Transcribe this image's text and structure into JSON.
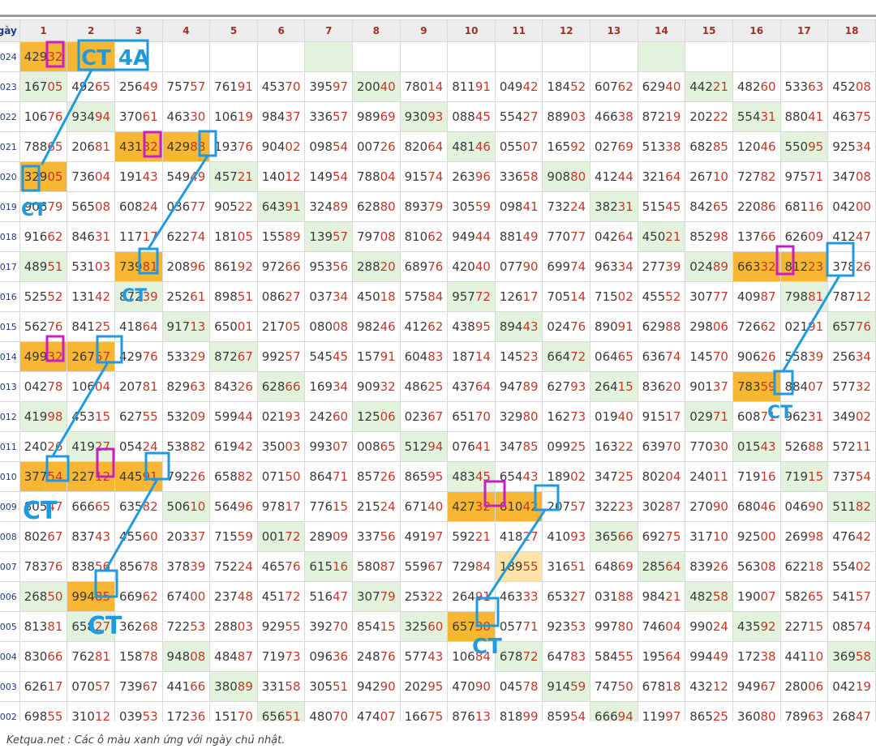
{
  "header": {
    "corner_label": "gày",
    "columns": [
      "1",
      "2",
      "3",
      "4",
      "5",
      "6",
      "7",
      "8",
      "9",
      "10",
      "11",
      "12",
      "13",
      "14",
      "15",
      "16",
      "17",
      "18"
    ]
  },
  "rows": [
    {
      "label": "024",
      "cells": [
        "42932",
        "",
        "",
        "",
        "",
        "",
        "",
        "",
        "",
        "",
        "",
        "",
        "",
        "",
        "",
        "",
        "",
        ""
      ],
      "sun": [
        7,
        14
      ],
      "hl": [
        1,
        2
      ],
      "lh": []
    },
    {
      "label": "023",
      "cells": [
        "16705",
        "49265",
        "25649",
        "75757",
        "76191",
        "45370",
        "39597",
        "20040",
        "78014",
        "81191",
        "04942",
        "18452",
        "60762",
        "62940",
        "44221",
        "48260",
        "53363",
        "45208"
      ],
      "sun": [
        1,
        8,
        15
      ],
      "hl": [],
      "lh": []
    },
    {
      "label": "022",
      "cells": [
        "10676",
        "93494",
        "37061",
        "46330",
        "10619",
        "98437",
        "33657",
        "98969",
        "93093",
        "08845",
        "55427",
        "88903",
        "46638",
        "87219",
        "20222",
        "55431",
        "88041",
        "46375"
      ],
      "sun": [
        2,
        9,
        16
      ],
      "hl": [],
      "lh": []
    },
    {
      "label": "021",
      "cells": [
        "78865",
        "20681",
        "43132",
        "42988",
        "19376",
        "90402",
        "09854",
        "00726",
        "82064",
        "48146",
        "05507",
        "16592",
        "02769",
        "51338",
        "68285",
        "12046",
        "55095",
        "92534"
      ],
      "sun": [
        10,
        17
      ],
      "hl": [
        3,
        4
      ],
      "lh": []
    },
    {
      "label": "020",
      "cells": [
        "32905",
        "73604",
        "19143",
        "54949",
        "45721",
        "14012",
        "14954",
        "78804",
        "91574",
        "26396",
        "33658",
        "90880",
        "41244",
        "32164",
        "26710",
        "72782",
        "97571",
        "34708"
      ],
      "sun": [
        5,
        12
      ],
      "hl": [
        1
      ],
      "lh": []
    },
    {
      "label": "019",
      "cells": [
        "90679",
        "56508",
        "60824",
        "03677",
        "90522",
        "64391",
        "32489",
        "62880",
        "89379",
        "30559",
        "09841",
        "73224",
        "38231",
        "51545",
        "84265",
        "22086",
        "68116",
        "04200"
      ],
      "sun": [
        6,
        13
      ],
      "hl": [],
      "lh": []
    },
    {
      "label": "018",
      "cells": [
        "91662",
        "84631",
        "11717",
        "62274",
        "18105",
        "15589",
        "13957",
        "79708",
        "81062",
        "94944",
        "88149",
        "77077",
        "04264",
        "45021",
        "85298",
        "13766",
        "62609",
        "41247"
      ],
      "sun": [
        7,
        14
      ],
      "hl": [],
      "lh": []
    },
    {
      "label": "017",
      "cells": [
        "48951",
        "53103",
        "73981",
        "20896",
        "86192",
        "97266",
        "95356",
        "28820",
        "68976",
        "42040",
        "07790",
        "69974",
        "96334",
        "27739",
        "02489",
        "66332",
        "81223",
        "37826"
      ],
      "sun": [
        1,
        8,
        15
      ],
      "hl": [
        3,
        16,
        17
      ],
      "lh": []
    },
    {
      "label": "016",
      "cells": [
        "52552",
        "13142",
        "87239",
        "25261",
        "89851",
        "08627",
        "03734",
        "45018",
        "57584",
        "95772",
        "12617",
        "70514",
        "71502",
        "45552",
        "30777",
        "40987",
        "79881",
        "78712"
      ],
      "sun": [
        3,
        10,
        17
      ],
      "hl": [],
      "lh": []
    },
    {
      "label": "015",
      "cells": [
        "56276",
        "84125",
        "41864",
        "91713",
        "65001",
        "21705",
        "08008",
        "98246",
        "41262",
        "43895",
        "89443",
        "02476",
        "89091",
        "62988",
        "29806",
        "72662",
        "02191",
        "65776"
      ],
      "sun": [
        4,
        11,
        18
      ],
      "hl": [],
      "lh": []
    },
    {
      "label": "014",
      "cells": [
        "49932",
        "26757",
        "42976",
        "53329",
        "87267",
        "99257",
        "54545",
        "15791",
        "60483",
        "18714",
        "14523",
        "66472",
        "06465",
        "63674",
        "14570",
        "90626",
        "55839",
        "25634"
      ],
      "sun": [
        5,
        12
      ],
      "hl": [
        1,
        2
      ],
      "lh": []
    },
    {
      "label": "013",
      "cells": [
        "04278",
        "10604",
        "20781",
        "82963",
        "84326",
        "62866",
        "16934",
        "90932",
        "48625",
        "43764",
        "94789",
        "62793",
        "26415",
        "83620",
        "90137",
        "78359",
        "88407",
        "57732"
      ],
      "sun": [
        6,
        13
      ],
      "hl": [
        16
      ],
      "lh": []
    },
    {
      "label": "012",
      "cells": [
        "41998",
        "45315",
        "62755",
        "53209",
        "59944",
        "02193",
        "24260",
        "12506",
        "02367",
        "65170",
        "32980",
        "16273",
        "01940",
        "91517",
        "02971",
        "60871",
        "96231",
        "34902"
      ],
      "sun": [
        1,
        8,
        15
      ],
      "hl": [],
      "lh": []
    },
    {
      "label": "011",
      "cells": [
        "24026",
        "41927",
        "05424",
        "53882",
        "61942",
        "35003",
        "99307",
        "00865",
        "51294",
        "07641",
        "34785",
        "09925",
        "16322",
        "63970",
        "77030",
        "01543",
        "52688",
        "57211"
      ],
      "sun": [
        2,
        9,
        16
      ],
      "hl": [],
      "lh": []
    },
    {
      "label": "010",
      "cells": [
        "37754",
        "22712",
        "44591",
        "79226",
        "65882",
        "07150",
        "86471",
        "85726",
        "86595",
        "48345",
        "65443",
        "18902",
        "34725",
        "80204",
        "24011",
        "71916",
        "71915",
        "73754"
      ],
      "sun": [
        10,
        17
      ],
      "hl": [
        1,
        2,
        3
      ],
      "lh": []
    },
    {
      "label": "009",
      "cells": [
        "80547",
        "66665",
        "63582",
        "50610",
        "56496",
        "97817",
        "77615",
        "21524",
        "67140",
        "42732",
        "61042",
        "20757",
        "32223",
        "30287",
        "27090",
        "68046",
        "04690",
        "51182"
      ],
      "sun": [
        4,
        18
      ],
      "hl": [
        10,
        11
      ],
      "lh": []
    },
    {
      "label": "008",
      "cells": [
        "80267",
        "83743",
        "45560",
        "20337",
        "71559",
        "00172",
        "28909",
        "33756",
        "49197",
        "59221",
        "41827",
        "41093",
        "36566",
        "69275",
        "31710",
        "92500",
        "26998",
        "47642"
      ],
      "sun": [
        6,
        13
      ],
      "hl": [],
      "lh": []
    },
    {
      "label": "007",
      "cells": [
        "78376",
        "83856",
        "85678",
        "37839",
        "75224",
        "46576",
        "61516",
        "58087",
        "55967",
        "72984",
        "18955",
        "31651",
        "64869",
        "28564",
        "83926",
        "56308",
        "62218",
        "55402"
      ],
      "sun": [
        7,
        14
      ],
      "hl": [],
      "lh": [
        11
      ]
    },
    {
      "label": "006",
      "cells": [
        "26850",
        "99485",
        "66962",
        "67400",
        "23748",
        "45172",
        "51647",
        "30779",
        "25322",
        "26491",
        "46333",
        "65327",
        "03188",
        "98421",
        "48258",
        "19007",
        "58265",
        "54157"
      ],
      "sun": [
        1,
        8,
        15
      ],
      "hl": [
        2
      ],
      "lh": []
    },
    {
      "label": "005",
      "cells": [
        "81381",
        "65827",
        "36268",
        "72253",
        "28803",
        "92955",
        "39270",
        "85415",
        "32560",
        "65730",
        "05771",
        "92353",
        "99780",
        "74604",
        "99024",
        "43592",
        "22715",
        "08574"
      ],
      "sun": [
        2,
        9,
        16
      ],
      "hl": [
        10
      ],
      "lh": []
    },
    {
      "label": "004",
      "cells": [
        "83066",
        "76281",
        "15878",
        "94808",
        "48487",
        "71973",
        "09636",
        "24876",
        "57743",
        "10684",
        "67872",
        "64783",
        "58455",
        "19564",
        "99449",
        "17238",
        "44110",
        "36958"
      ],
      "sun": [
        4,
        11,
        18
      ],
      "hl": [],
      "lh": []
    },
    {
      "label": "003",
      "cells": [
        "62617",
        "07057",
        "73967",
        "44166",
        "38089",
        "33158",
        "30551",
        "94290",
        "20295",
        "47090",
        "04578",
        "91459",
        "74750",
        "67818",
        "43212",
        "94967",
        "28006",
        "04219"
      ],
      "sun": [
        5,
        12
      ],
      "hl": [],
      "lh": []
    },
    {
      "label": "002",
      "cells": [
        "69855",
        "31012",
        "03953",
        "17236",
        "15170",
        "65651",
        "48070",
        "47407",
        "16675",
        "87613",
        "81899",
        "85954",
        "66694",
        "11997",
        "86525",
        "36080",
        "78963",
        "26847"
      ],
      "sun": [
        6,
        13
      ],
      "hl": [],
      "lh": []
    }
  ],
  "annotations": {
    "main_label": "CT 4A",
    "labels": [
      "CT",
      "CT",
      "CT",
      "CT",
      "CT",
      "CT",
      "CT",
      "CT"
    ],
    "colors": {
      "cyan": "#1e9be0",
      "magenta": "#c81ec8",
      "orange": "#f7b733",
      "green": "#e3f2dd"
    }
  },
  "footer": "Ketqua.net : Các ô màu xanh ứng với ngày chủ nhật."
}
